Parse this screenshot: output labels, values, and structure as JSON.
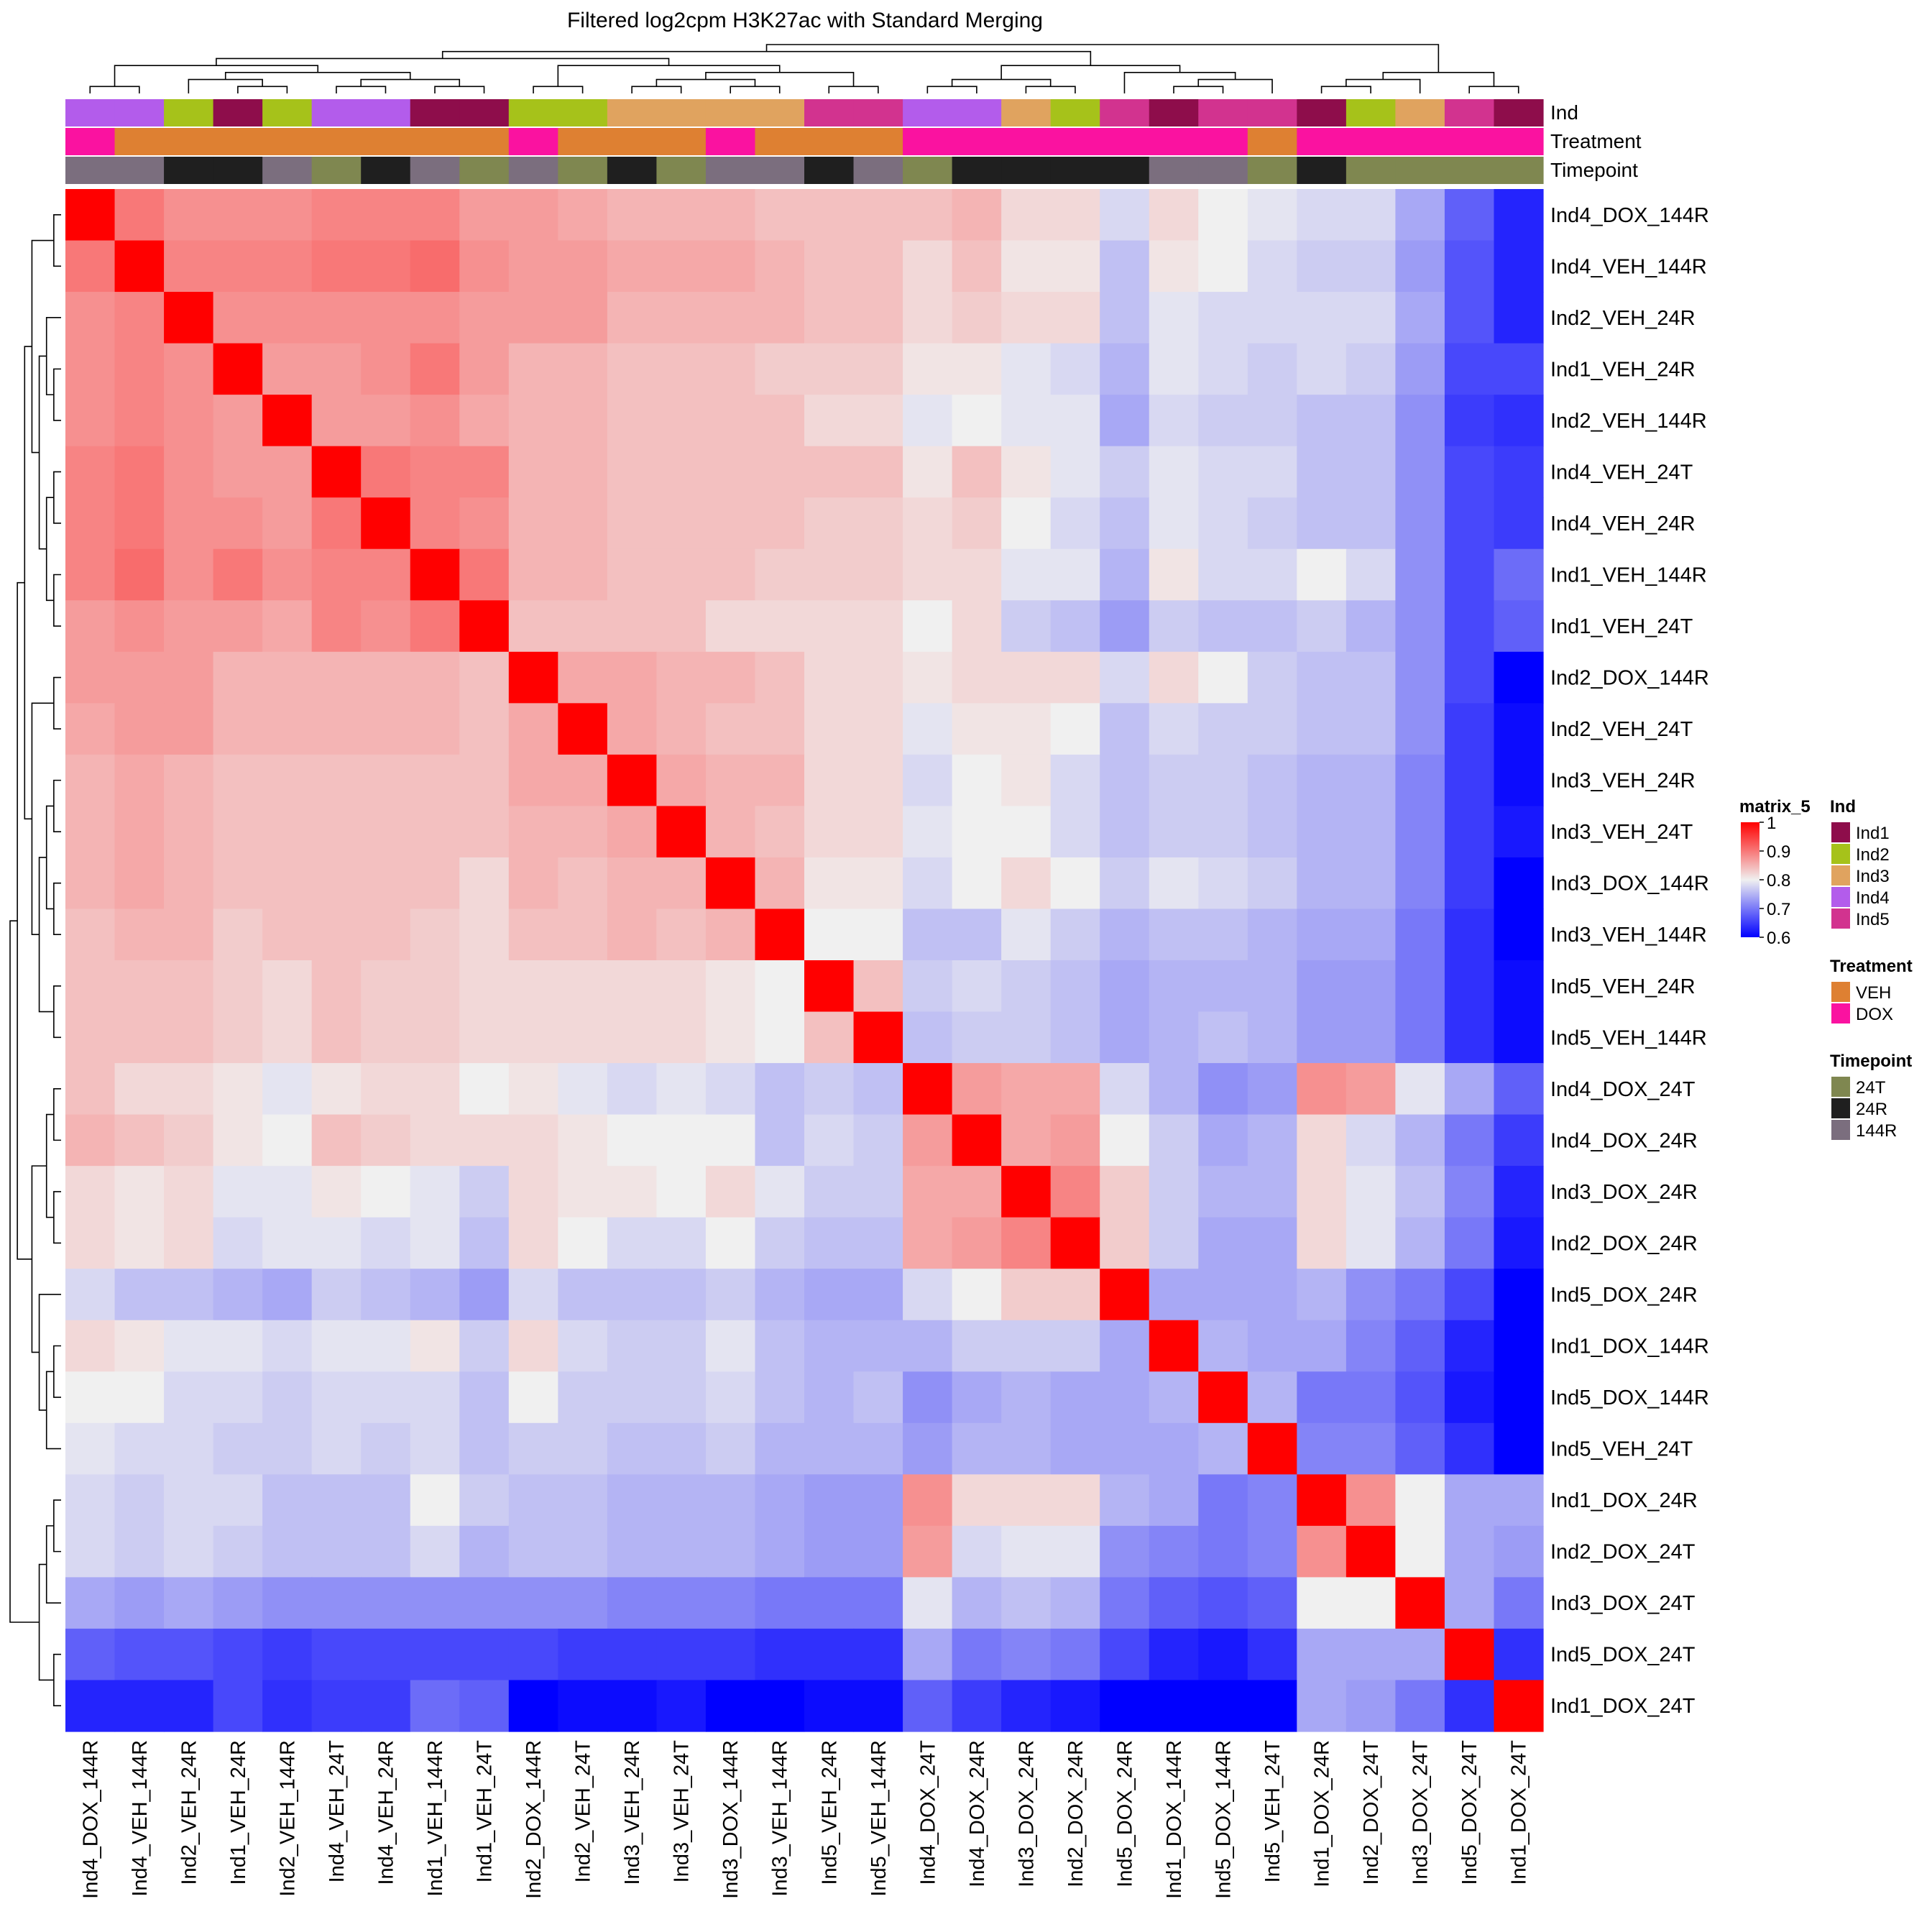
{
  "chart_data": {
    "type": "heatmap",
    "title": "Filtered log2cpm H3K27ac with Standard Merging",
    "samples": [
      "Ind4_DOX_144R",
      "Ind4_VEH_144R",
      "Ind2_VEH_24R",
      "Ind1_VEH_24R",
      "Ind2_VEH_144R",
      "Ind4_VEH_24T",
      "Ind4_VEH_24R",
      "Ind1_VEH_144R",
      "Ind1_VEH_24T",
      "Ind2_DOX_144R",
      "Ind2_VEH_24T",
      "Ind3_VEH_24R",
      "Ind3_VEH_24T",
      "Ind3_DOX_144R",
      "Ind3_VEH_144R",
      "Ind5_VEH_24R",
      "Ind5_VEH_144R",
      "Ind4_DOX_24T",
      "Ind4_DOX_24R",
      "Ind3_DOX_24R",
      "Ind2_DOX_24R",
      "Ind5_DOX_24R",
      "Ind1_DOX_144R",
      "Ind5_DOX_144R",
      "Ind5_VEH_24T",
      "Ind1_DOX_24R",
      "Ind2_DOX_24T",
      "Ind3_DOX_24T",
      "Ind5_DOX_24T",
      "Ind1_DOX_24T"
    ],
    "matrix": [
      [
        1.0,
        0.9,
        0.88,
        0.88,
        0.88,
        0.89,
        0.89,
        0.89,
        0.87,
        0.87,
        0.86,
        0.85,
        0.85,
        0.85,
        0.84,
        0.84,
        0.84,
        0.84,
        0.85,
        0.82,
        0.82,
        0.78,
        0.82,
        0.8,
        0.79,
        0.78,
        0.78,
        0.74,
        0.68,
        0.63
      ],
      [
        0.9,
        1.0,
        0.89,
        0.89,
        0.89,
        0.9,
        0.9,
        0.91,
        0.88,
        0.87,
        0.87,
        0.86,
        0.86,
        0.86,
        0.85,
        0.84,
        0.84,
        0.82,
        0.84,
        0.81,
        0.81,
        0.76,
        0.81,
        0.8,
        0.78,
        0.77,
        0.77,
        0.73,
        0.67,
        0.63
      ],
      [
        0.88,
        0.89,
        1.0,
        0.88,
        0.88,
        0.88,
        0.88,
        0.88,
        0.87,
        0.87,
        0.87,
        0.85,
        0.85,
        0.85,
        0.85,
        0.84,
        0.84,
        0.82,
        0.83,
        0.82,
        0.82,
        0.76,
        0.79,
        0.78,
        0.78,
        0.78,
        0.78,
        0.74,
        0.67,
        0.63
      ],
      [
        0.88,
        0.89,
        0.88,
        1.0,
        0.87,
        0.87,
        0.88,
        0.9,
        0.87,
        0.85,
        0.85,
        0.84,
        0.84,
        0.84,
        0.83,
        0.83,
        0.83,
        0.81,
        0.81,
        0.79,
        0.78,
        0.75,
        0.79,
        0.78,
        0.77,
        0.78,
        0.77,
        0.73,
        0.66,
        0.66
      ],
      [
        0.88,
        0.89,
        0.88,
        0.87,
        1.0,
        0.87,
        0.87,
        0.88,
        0.86,
        0.85,
        0.85,
        0.84,
        0.84,
        0.84,
        0.84,
        0.82,
        0.82,
        0.79,
        0.8,
        0.79,
        0.79,
        0.74,
        0.78,
        0.77,
        0.77,
        0.76,
        0.76,
        0.72,
        0.65,
        0.64
      ],
      [
        0.89,
        0.9,
        0.88,
        0.87,
        0.87,
        1.0,
        0.9,
        0.89,
        0.89,
        0.85,
        0.85,
        0.84,
        0.84,
        0.84,
        0.84,
        0.84,
        0.84,
        0.81,
        0.84,
        0.81,
        0.79,
        0.77,
        0.79,
        0.78,
        0.78,
        0.76,
        0.76,
        0.72,
        0.66,
        0.65
      ],
      [
        0.89,
        0.9,
        0.88,
        0.88,
        0.87,
        0.9,
        1.0,
        0.89,
        0.88,
        0.85,
        0.85,
        0.84,
        0.84,
        0.84,
        0.84,
        0.83,
        0.83,
        0.82,
        0.83,
        0.8,
        0.78,
        0.76,
        0.79,
        0.78,
        0.77,
        0.76,
        0.76,
        0.72,
        0.66,
        0.65
      ],
      [
        0.89,
        0.91,
        0.88,
        0.9,
        0.88,
        0.89,
        0.89,
        1.0,
        0.9,
        0.85,
        0.85,
        0.84,
        0.84,
        0.84,
        0.83,
        0.83,
        0.83,
        0.82,
        0.82,
        0.79,
        0.79,
        0.75,
        0.81,
        0.78,
        0.78,
        0.8,
        0.78,
        0.72,
        0.66,
        0.69
      ],
      [
        0.87,
        0.88,
        0.87,
        0.87,
        0.86,
        0.89,
        0.88,
        0.9,
        1.0,
        0.84,
        0.84,
        0.84,
        0.84,
        0.82,
        0.82,
        0.82,
        0.82,
        0.8,
        0.82,
        0.77,
        0.76,
        0.73,
        0.77,
        0.76,
        0.76,
        0.77,
        0.75,
        0.72,
        0.66,
        0.68
      ],
      [
        0.87,
        0.87,
        0.87,
        0.85,
        0.85,
        0.85,
        0.85,
        0.85,
        0.84,
        1.0,
        0.86,
        0.86,
        0.85,
        0.85,
        0.84,
        0.82,
        0.82,
        0.81,
        0.82,
        0.82,
        0.82,
        0.78,
        0.82,
        0.8,
        0.77,
        0.76,
        0.76,
        0.72,
        0.66,
        0.6
      ],
      [
        0.86,
        0.87,
        0.87,
        0.85,
        0.85,
        0.85,
        0.85,
        0.85,
        0.84,
        0.86,
        1.0,
        0.86,
        0.85,
        0.84,
        0.84,
        0.82,
        0.82,
        0.79,
        0.81,
        0.81,
        0.8,
        0.76,
        0.78,
        0.77,
        0.77,
        0.76,
        0.76,
        0.72,
        0.65,
        0.61
      ],
      [
        0.85,
        0.86,
        0.85,
        0.84,
        0.84,
        0.84,
        0.84,
        0.84,
        0.84,
        0.86,
        0.86,
        1.0,
        0.86,
        0.85,
        0.85,
        0.82,
        0.82,
        0.78,
        0.8,
        0.81,
        0.78,
        0.76,
        0.77,
        0.77,
        0.76,
        0.75,
        0.75,
        0.71,
        0.65,
        0.61
      ],
      [
        0.85,
        0.86,
        0.85,
        0.84,
        0.84,
        0.84,
        0.84,
        0.84,
        0.84,
        0.85,
        0.85,
        0.86,
        1.0,
        0.85,
        0.84,
        0.82,
        0.82,
        0.79,
        0.8,
        0.8,
        0.78,
        0.76,
        0.77,
        0.77,
        0.76,
        0.75,
        0.75,
        0.71,
        0.65,
        0.62
      ],
      [
        0.85,
        0.86,
        0.85,
        0.84,
        0.84,
        0.84,
        0.84,
        0.84,
        0.82,
        0.85,
        0.84,
        0.85,
        0.85,
        1.0,
        0.85,
        0.81,
        0.81,
        0.78,
        0.8,
        0.82,
        0.8,
        0.77,
        0.79,
        0.78,
        0.77,
        0.75,
        0.75,
        0.71,
        0.65,
        0.6
      ],
      [
        0.84,
        0.85,
        0.85,
        0.83,
        0.84,
        0.84,
        0.84,
        0.83,
        0.82,
        0.84,
        0.84,
        0.85,
        0.84,
        0.85,
        1.0,
        0.8,
        0.8,
        0.76,
        0.76,
        0.79,
        0.77,
        0.75,
        0.76,
        0.76,
        0.75,
        0.74,
        0.74,
        0.7,
        0.64,
        0.6
      ],
      [
        0.84,
        0.84,
        0.84,
        0.83,
        0.82,
        0.84,
        0.83,
        0.83,
        0.82,
        0.82,
        0.82,
        0.82,
        0.82,
        0.81,
        0.8,
        1.0,
        0.84,
        0.77,
        0.78,
        0.77,
        0.76,
        0.74,
        0.75,
        0.75,
        0.75,
        0.73,
        0.73,
        0.7,
        0.64,
        0.61
      ],
      [
        0.84,
        0.84,
        0.84,
        0.83,
        0.82,
        0.84,
        0.83,
        0.83,
        0.82,
        0.82,
        0.82,
        0.82,
        0.82,
        0.81,
        0.8,
        0.84,
        1.0,
        0.76,
        0.77,
        0.77,
        0.76,
        0.74,
        0.75,
        0.76,
        0.75,
        0.73,
        0.73,
        0.7,
        0.64,
        0.61
      ],
      [
        0.84,
        0.82,
        0.82,
        0.81,
        0.79,
        0.81,
        0.82,
        0.82,
        0.8,
        0.81,
        0.79,
        0.78,
        0.79,
        0.78,
        0.76,
        0.77,
        0.76,
        1.0,
        0.87,
        0.86,
        0.86,
        0.78,
        0.75,
        0.72,
        0.73,
        0.88,
        0.87,
        0.79,
        0.74,
        0.68
      ],
      [
        0.85,
        0.84,
        0.83,
        0.81,
        0.8,
        0.84,
        0.83,
        0.82,
        0.82,
        0.82,
        0.81,
        0.8,
        0.8,
        0.8,
        0.76,
        0.78,
        0.77,
        0.87,
        1.0,
        0.86,
        0.87,
        0.8,
        0.77,
        0.74,
        0.75,
        0.82,
        0.78,
        0.75,
        0.7,
        0.65
      ],
      [
        0.82,
        0.81,
        0.82,
        0.79,
        0.79,
        0.81,
        0.8,
        0.79,
        0.77,
        0.82,
        0.81,
        0.81,
        0.8,
        0.82,
        0.79,
        0.77,
        0.77,
        0.86,
        0.86,
        1.0,
        0.89,
        0.83,
        0.77,
        0.75,
        0.75,
        0.82,
        0.79,
        0.76,
        0.71,
        0.63
      ],
      [
        0.82,
        0.81,
        0.82,
        0.78,
        0.79,
        0.79,
        0.78,
        0.79,
        0.76,
        0.82,
        0.8,
        0.78,
        0.78,
        0.8,
        0.77,
        0.76,
        0.76,
        0.86,
        0.87,
        0.89,
        1.0,
        0.83,
        0.77,
        0.74,
        0.74,
        0.82,
        0.79,
        0.75,
        0.7,
        0.62
      ],
      [
        0.78,
        0.76,
        0.76,
        0.75,
        0.74,
        0.77,
        0.76,
        0.75,
        0.73,
        0.78,
        0.76,
        0.76,
        0.76,
        0.77,
        0.75,
        0.74,
        0.74,
        0.78,
        0.8,
        0.83,
        0.83,
        1.0,
        0.74,
        0.74,
        0.74,
        0.75,
        0.72,
        0.7,
        0.66,
        0.6
      ],
      [
        0.82,
        0.81,
        0.79,
        0.79,
        0.78,
        0.79,
        0.79,
        0.81,
        0.77,
        0.82,
        0.78,
        0.77,
        0.77,
        0.79,
        0.76,
        0.75,
        0.75,
        0.75,
        0.77,
        0.77,
        0.77,
        0.74,
        1.0,
        0.75,
        0.74,
        0.74,
        0.71,
        0.68,
        0.63,
        0.6
      ],
      [
        0.8,
        0.8,
        0.78,
        0.78,
        0.77,
        0.78,
        0.78,
        0.78,
        0.76,
        0.8,
        0.77,
        0.77,
        0.77,
        0.78,
        0.76,
        0.75,
        0.76,
        0.72,
        0.74,
        0.75,
        0.74,
        0.74,
        0.75,
        1.0,
        0.75,
        0.7,
        0.7,
        0.67,
        0.62,
        0.6
      ],
      [
        0.79,
        0.78,
        0.78,
        0.77,
        0.77,
        0.78,
        0.77,
        0.78,
        0.76,
        0.77,
        0.77,
        0.76,
        0.76,
        0.77,
        0.75,
        0.75,
        0.75,
        0.73,
        0.75,
        0.75,
        0.74,
        0.74,
        0.74,
        0.75,
        1.0,
        0.71,
        0.71,
        0.68,
        0.64,
        0.6
      ],
      [
        0.78,
        0.77,
        0.78,
        0.78,
        0.76,
        0.76,
        0.76,
        0.8,
        0.77,
        0.76,
        0.76,
        0.75,
        0.75,
        0.75,
        0.74,
        0.73,
        0.73,
        0.88,
        0.82,
        0.82,
        0.82,
        0.75,
        0.74,
        0.7,
        0.71,
        1.0,
        0.88,
        0.8,
        0.74,
        0.74
      ],
      [
        0.78,
        0.77,
        0.78,
        0.77,
        0.76,
        0.76,
        0.76,
        0.78,
        0.75,
        0.76,
        0.76,
        0.75,
        0.75,
        0.75,
        0.74,
        0.73,
        0.73,
        0.87,
        0.78,
        0.79,
        0.79,
        0.72,
        0.71,
        0.7,
        0.71,
        0.88,
        1.0,
        0.8,
        0.74,
        0.73
      ],
      [
        0.74,
        0.73,
        0.74,
        0.73,
        0.72,
        0.72,
        0.72,
        0.72,
        0.72,
        0.72,
        0.72,
        0.71,
        0.71,
        0.71,
        0.7,
        0.7,
        0.7,
        0.79,
        0.75,
        0.76,
        0.75,
        0.7,
        0.68,
        0.67,
        0.68,
        0.8,
        0.8,
        1.0,
        0.74,
        0.7
      ],
      [
        0.68,
        0.67,
        0.67,
        0.66,
        0.65,
        0.66,
        0.66,
        0.66,
        0.66,
        0.66,
        0.65,
        0.65,
        0.65,
        0.65,
        0.64,
        0.64,
        0.64,
        0.74,
        0.7,
        0.71,
        0.7,
        0.66,
        0.63,
        0.62,
        0.64,
        0.74,
        0.74,
        0.74,
        1.0,
        0.64
      ],
      [
        0.63,
        0.63,
        0.63,
        0.66,
        0.64,
        0.65,
        0.65,
        0.69,
        0.68,
        0.6,
        0.61,
        0.61,
        0.62,
        0.6,
        0.6,
        0.61,
        0.61,
        0.68,
        0.65,
        0.63,
        0.62,
        0.6,
        0.6,
        0.6,
        0.6,
        0.74,
        0.73,
        0.7,
        0.64,
        1.0
      ]
    ],
    "annotations": {
      "Ind": [
        "Ind4",
        "Ind4",
        "Ind2",
        "Ind1",
        "Ind2",
        "Ind4",
        "Ind4",
        "Ind1",
        "Ind1",
        "Ind2",
        "Ind2",
        "Ind3",
        "Ind3",
        "Ind3",
        "Ind3",
        "Ind5",
        "Ind5",
        "Ind4",
        "Ind4",
        "Ind3",
        "Ind2",
        "Ind5",
        "Ind1",
        "Ind5",
        "Ind5",
        "Ind1",
        "Ind2",
        "Ind3",
        "Ind5",
        "Ind1"
      ],
      "Treatment": [
        "DOX",
        "VEH",
        "VEH",
        "VEH",
        "VEH",
        "VEH",
        "VEH",
        "VEH",
        "VEH",
        "DOX",
        "VEH",
        "VEH",
        "VEH",
        "DOX",
        "VEH",
        "VEH",
        "VEH",
        "DOX",
        "DOX",
        "DOX",
        "DOX",
        "DOX",
        "DOX",
        "DOX",
        "VEH",
        "DOX",
        "DOX",
        "DOX",
        "DOX",
        "DOX"
      ],
      "Timepoint": [
        "144R",
        "144R",
        "24R",
        "24R",
        "144R",
        "24T",
        "24R",
        "144R",
        "24T",
        "144R",
        "24T",
        "24R",
        "24T",
        "144R",
        "144R",
        "24R",
        "144R",
        "24T",
        "24R",
        "24R",
        "24R",
        "24R",
        "144R",
        "144R",
        "24T",
        "24R",
        "24T",
        "24T",
        "24T",
        "24T"
      ]
    },
    "annotation_labels": [
      "Ind",
      "Treatment",
      "Timepoint"
    ],
    "color_scale": {
      "name": "matrix_5",
      "min": 0.6,
      "mid": 0.8,
      "max": 1.0,
      "low_color": "#0000FF",
      "mid_color": "#F0F0F0",
      "high_color": "#FF0000",
      "ticks": [
        "1",
        "0.9",
        "0.8",
        "0.7",
        "0.6"
      ]
    },
    "legends": [
      {
        "title": "Ind",
        "items": [
          {
            "label": "Ind1",
            "color": "#8E0D4B"
          },
          {
            "label": "Ind2",
            "color": "#A6C21A"
          },
          {
            "label": "Ind3",
            "color": "#E0A35F"
          },
          {
            "label": "Ind4",
            "color": "#B35CEB"
          },
          {
            "label": "Ind5",
            "color": "#D2338F"
          }
        ]
      },
      {
        "title": "Treatment",
        "items": [
          {
            "label": "VEH",
            "color": "#DE8032"
          },
          {
            "label": "DOX",
            "color": "#FA12A0"
          }
        ]
      },
      {
        "title": "Timepoint",
        "items": [
          {
            "label": "24T",
            "color": "#7F8750"
          },
          {
            "label": "24R",
            "color": "#1F1F1F"
          },
          {
            "label": "144R",
            "color": "#7B6E7E"
          }
        ]
      }
    ]
  }
}
